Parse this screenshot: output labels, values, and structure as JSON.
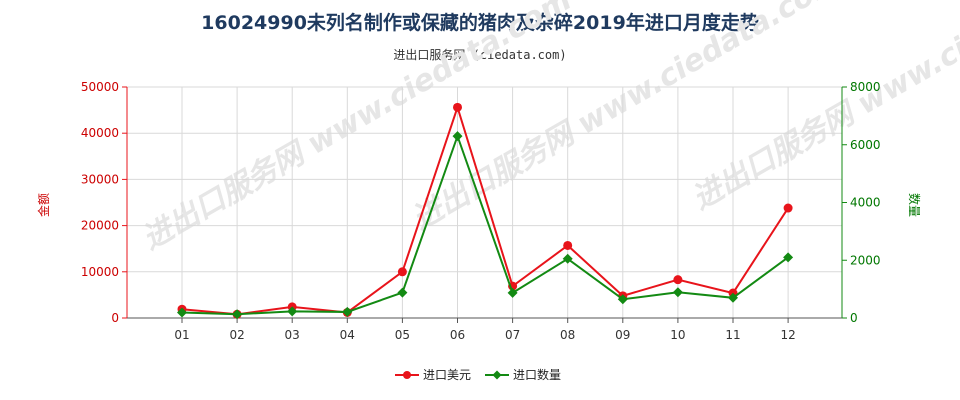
{
  "header": {
    "title": "16024990未列名制作或保藏的猪肉及杂碎2019年进口月度走势",
    "subtitle": "进出口服务网 (ciedata.com)"
  },
  "watermark": "进出口服务网 www.ciedata.com",
  "colors": {
    "amount": "#e8141b",
    "quantity": "#138a13",
    "grid": "#d9d9d9"
  },
  "chart_data": {
    "type": "line",
    "categories": [
      "01",
      "02",
      "03",
      "04",
      "05",
      "06",
      "07",
      "08",
      "09",
      "10",
      "11",
      "12"
    ],
    "y_left": {
      "label": "金额",
      "range": [
        0,
        50000
      ],
      "ticks": [
        0,
        10000,
        20000,
        30000,
        40000,
        50000
      ]
    },
    "y_right": {
      "label": "数量",
      "range": [
        0,
        8000
      ],
      "ticks": [
        0,
        2000,
        4000,
        6000,
        8000
      ]
    },
    "grid": true,
    "legend_position": "bottom-center",
    "series": [
      {
        "name": "进口美元",
        "axis": "left",
        "color": "#e8141b",
        "marker": "circle",
        "values": [
          1900,
          800,
          2400,
          1200,
          10000,
          45600,
          6900,
          15700,
          4800,
          8300,
          5400,
          23800
        ]
      },
      {
        "name": "进口数量",
        "axis": "right",
        "color": "#138a13",
        "marker": "diamond",
        "values": [
          190,
          130,
          230,
          210,
          880,
          6300,
          870,
          2050,
          650,
          890,
          700,
          2100
        ]
      }
    ]
  }
}
